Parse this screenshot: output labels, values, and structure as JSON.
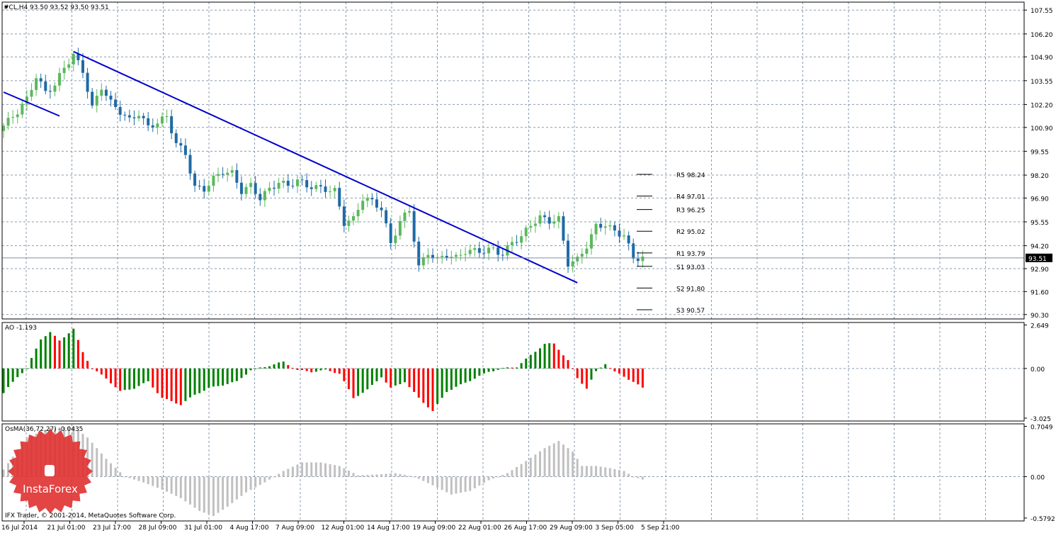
{
  "header": {
    "symbol_line": "#CL,H4  93.50 93.52 93.50 93.51",
    "ao_label": "AO -1.193",
    "osma_label": "OsMA(36,72,27) -0.0435",
    "footer_text": "IFX Trader, © 2001-2014, MetaQuotes Software Corp.",
    "logo_text": "InstaForex"
  },
  "colors": {
    "grid": "#8a9aae",
    "bull": "#5cb85c",
    "bear": "#1f6aa5",
    "trend": "#0000cc",
    "ao_up": "#008000",
    "ao_down": "#ff0000",
    "osma": "#c0c0c0",
    "logo": "#e03030"
  },
  "chart_data": [
    {
      "type": "candlestick",
      "title": "#CL,H4",
      "ylim": [
        90.05,
        108.0
      ],
      "y_ticks": [
        "107.55",
        "106.20",
        "104.90",
        "103.55",
        "102.20",
        "100.90",
        "99.55",
        "98.20",
        "96.90",
        "95.55",
        "94.20",
        "92.90",
        "91.60",
        "90.30"
      ],
      "x_ticks": [
        "16 Jul 2014",
        "21 Jul 01:00",
        "23 Jul 17:00",
        "28 Jul 09:00",
        "31 Jul 01:00",
        "4 Aug 17:00",
        "7 Aug 09:00",
        "12 Aug 01:00",
        "14 Aug 17:00",
        "19 Aug 09:00",
        "22 Aug 01:00",
        "26 Aug 17:00",
        "29 Aug 09:00",
        "3 Sep 05:00",
        "5 Sep 21:00"
      ],
      "close_path": [
        [
          0,
          101.0
        ],
        [
          3,
          101.8
        ],
        [
          5,
          102.5
        ],
        [
          7,
          103.8
        ],
        [
          9,
          102.9
        ],
        [
          11,
          103.3
        ],
        [
          13,
          104.3
        ],
        [
          15,
          105.0
        ],
        [
          17,
          104.1
        ],
        [
          19,
          102.0
        ],
        [
          21,
          103.2
        ],
        [
          23,
          102.3
        ],
        [
          25,
          101.8
        ],
        [
          27,
          101.3
        ],
        [
          29,
          101.7
        ],
        [
          31,
          100.9
        ],
        [
          33,
          101.2
        ],
        [
          35,
          101.5
        ],
        [
          37,
          100.0
        ],
        [
          39,
          99.4
        ],
        [
          41,
          97.5
        ],
        [
          43,
          97.4
        ],
        [
          45,
          98.0
        ],
        [
          47,
          98.4
        ],
        [
          49,
          98.3
        ],
        [
          51,
          97.3
        ],
        [
          53,
          97.6
        ],
        [
          55,
          96.9
        ],
        [
          57,
          97.4
        ],
        [
          59,
          97.8
        ],
        [
          61,
          97.6
        ],
        [
          63,
          97.9
        ],
        [
          65,
          97.6
        ],
        [
          67,
          97.5
        ],
        [
          69,
          97.4
        ],
        [
          71,
          97.3
        ],
        [
          73,
          95.5
        ],
        [
          75,
          95.7
        ],
        [
          77,
          96.9
        ],
        [
          79,
          96.7
        ],
        [
          81,
          96.3
        ],
        [
          83,
          94.3
        ],
        [
          85,
          95.6
        ],
        [
          87,
          96.2
        ],
        [
          89,
          93.0
        ],
        [
          91,
          93.8
        ],
        [
          93,
          93.4
        ],
        [
          95,
          93.7
        ],
        [
          97,
          93.5
        ],
        [
          99,
          93.9
        ],
        [
          101,
          93.9
        ],
        [
          103,
          93.9
        ],
        [
          105,
          94.0
        ],
        [
          107,
          93.7
        ],
        [
          109,
          94.4
        ],
        [
          111,
          94.7
        ],
        [
          113,
          95.4
        ],
        [
          115,
          95.8
        ],
        [
          117,
          95.6
        ],
        [
          119,
          95.7
        ],
        [
          121,
          93.2
        ],
        [
          123,
          93.4
        ],
        [
          125,
          94.2
        ],
        [
          127,
          95.3
        ],
        [
          129,
          95.4
        ],
        [
          131,
          95.0
        ],
        [
          133,
          94.8
        ],
        [
          135,
          93.5
        ],
        [
          137,
          93.51
        ]
      ],
      "pivot_levels": [
        {
          "label": "R5 98.24",
          "value": 98.24
        },
        {
          "label": "R4 97.01",
          "value": 97.01
        },
        {
          "label": "R3 96.25",
          "value": 96.25
        },
        {
          "label": "R2 95.02",
          "value": 95.02
        },
        {
          "label": "R1 93.79",
          "value": 93.79
        },
        {
          "label": "S1 93.03",
          "value": 93.03
        },
        {
          "label": "S2 91.80",
          "value": 91.8
        },
        {
          "label": "S3 90.57",
          "value": 90.57
        }
      ],
      "current_price": "93.51",
      "trendlines": [
        {
          "from": [
            0,
            102.9
          ],
          "to": [
            12,
            101.55
          ]
        },
        {
          "from": [
            15,
            105.2
          ],
          "to": [
            123,
            92.1
          ]
        }
      ]
    },
    {
      "type": "bar",
      "title": "AO -1.193",
      "ylim": [
        -3.2,
        2.8
      ],
      "y_ticks": [
        "2.649",
        "0.00",
        "-3.025"
      ],
      "path": [
        [
          0,
          -1.5
        ],
        [
          3,
          -0.5
        ],
        [
          5,
          0.0
        ],
        [
          8,
          1.8
        ],
        [
          10,
          2.2
        ],
        [
          12,
          1.7
        ],
        [
          15,
          2.4
        ],
        [
          17,
          1.0
        ],
        [
          19,
          0.0
        ],
        [
          22,
          -0.6
        ],
        [
          25,
          -1.4
        ],
        [
          28,
          -1.2
        ],
        [
          31,
          -0.8
        ],
        [
          34,
          -1.8
        ],
        [
          38,
          -2.2
        ],
        [
          41,
          -1.6
        ],
        [
          44,
          -1.2
        ],
        [
          47,
          -1.0
        ],
        [
          50,
          -0.8
        ],
        [
          53,
          -0.1
        ],
        [
          56,
          0.1
        ],
        [
          60,
          0.4
        ],
        [
          63,
          -0.1
        ],
        [
          66,
          -0.2
        ],
        [
          69,
          -0.1
        ],
        [
          72,
          -0.3
        ],
        [
          75,
          -1.8
        ],
        [
          78,
          -1.3
        ],
        [
          81,
          -0.5
        ],
        [
          83,
          -1.2
        ],
        [
          86,
          -0.8
        ],
        [
          89,
          -1.8
        ],
        [
          92,
          -2.6
        ],
        [
          95,
          -1.4
        ],
        [
          98,
          -1.0
        ],
        [
          101,
          -0.6
        ],
        [
          104,
          -0.2
        ],
        [
          107,
          0.0
        ],
        [
          110,
          0.1
        ],
        [
          113,
          0.8
        ],
        [
          116,
          1.5
        ],
        [
          118,
          1.5
        ],
        [
          121,
          0.5
        ],
        [
          123,
          -0.6
        ],
        [
          125,
          -1.2
        ],
        [
          127,
          -0.2
        ],
        [
          129,
          0.3
        ],
        [
          131,
          -0.2
        ],
        [
          133,
          -0.5
        ],
        [
          135,
          -0.8
        ],
        [
          137,
          -1.2
        ]
      ]
    },
    {
      "type": "bar",
      "title": "OsMA(36,72,27) -0.0435",
      "ylim": [
        -0.62,
        0.74
      ],
      "y_ticks": [
        "0.7049",
        "0.00",
        "-0.5792"
      ],
      "path": [
        [
          0,
          0.1
        ],
        [
          5,
          0.55
        ],
        [
          10,
          0.68
        ],
        [
          15,
          0.7
        ],
        [
          18,
          0.55
        ],
        [
          22,
          0.25
        ],
        [
          26,
          0.0
        ],
        [
          30,
          -0.08
        ],
        [
          34,
          -0.18
        ],
        [
          38,
          -0.3
        ],
        [
          42,
          -0.48
        ],
        [
          45,
          -0.55
        ],
        [
          48,
          -0.42
        ],
        [
          52,
          -0.22
        ],
        [
          56,
          -0.08
        ],
        [
          60,
          0.08
        ],
        [
          64,
          0.2
        ],
        [
          68,
          0.2
        ],
        [
          72,
          0.15
        ],
        [
          76,
          0.02
        ],
        [
          80,
          0.03
        ],
        [
          84,
          0.05
        ],
        [
          88,
          0.0
        ],
        [
          92,
          -0.12
        ],
        [
          96,
          -0.25
        ],
        [
          100,
          -0.2
        ],
        [
          104,
          -0.05
        ],
        [
          108,
          0.05
        ],
        [
          112,
          0.22
        ],
        [
          116,
          0.4
        ],
        [
          119,
          0.5
        ],
        [
          122,
          0.35
        ],
        [
          124,
          0.15
        ],
        [
          127,
          0.15
        ],
        [
          130,
          0.12
        ],
        [
          133,
          0.08
        ],
        [
          135,
          0.0
        ],
        [
          137,
          -0.04
        ]
      ]
    }
  ]
}
